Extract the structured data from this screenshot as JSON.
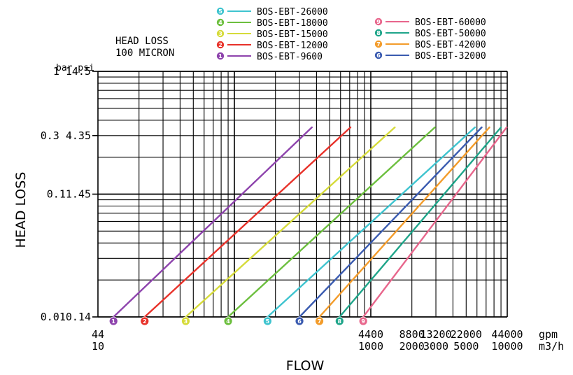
{
  "chart_data": {
    "type": "line",
    "title": "HEAD LOSS\n100 MICRON",
    "xlabel": "FLOW",
    "ylabel": "HEAD LOSS",
    "x_scale": "log",
    "y_scale": "log",
    "x_unit": "m3/h",
    "x_unit_alt": "gpm",
    "y_unit": "bar",
    "y_unit_alt": "psi",
    "xlim": [
      10,
      10000
    ],
    "ylim": [
      0.01,
      1
    ],
    "y_unit_header": "bar psi",
    "y_ticks": [
      {
        "value": 1,
        "label": "1 14.5"
      },
      {
        "value": 0.3,
        "label": "0.3 4.35"
      },
      {
        "value": 0.1,
        "label": "0.11.45"
      },
      {
        "value": 0.01,
        "label": "0.010.14"
      }
    ],
    "x_ticks": [
      {
        "value": 10,
        "label_top": "44",
        "label_bottom": "10"
      },
      {
        "value": 1000,
        "label_top": "4400",
        "label_bottom": "1000"
      },
      {
        "value": 2000,
        "label_top": "8800",
        "label_bottom": "2000"
      },
      {
        "value": 3000,
        "label_top": "13200",
        "label_bottom": "3000"
      },
      {
        "value": 5000,
        "label_top": "22000",
        "label_bottom": "5000"
      },
      {
        "value": 10000,
        "label_top": "44000",
        "label_bottom": "10000"
      }
    ],
    "x_unit_label_top": "gpm",
    "x_unit_label_bottom": "m3/h",
    "grid": true,
    "legend_position": "top",
    "series": [
      {
        "name": "BOS-EBT-9600",
        "badge": "1",
        "color": "#8e44ad",
        "x": [
          13,
          370
        ],
        "y": [
          0.01,
          0.35
        ]
      },
      {
        "name": "BOS-EBT-12000",
        "badge": "2",
        "color": "#e8322a",
        "x": [
          22,
          710
        ],
        "y": [
          0.01,
          0.35
        ]
      },
      {
        "name": "BOS-EBT-15000",
        "badge": "3",
        "color": "#d6db3a",
        "x": [
          44,
          1500
        ],
        "y": [
          0.01,
          0.35
        ]
      },
      {
        "name": "BOS-EBT-18000",
        "badge": "4",
        "color": "#6cbf3e",
        "x": [
          90,
          2950
        ],
        "y": [
          0.01,
          0.35
        ]
      },
      {
        "name": "BOS-EBT-26000",
        "badge": "5",
        "color": "#3fc4cf",
        "x": [
          175,
          5800
        ],
        "y": [
          0.01,
          0.35
        ]
      },
      {
        "name": "BOS-EBT-32000",
        "badge": "6",
        "color": "#3a5bb0",
        "x": [
          300,
          6500
        ],
        "y": [
          0.01,
          0.35
        ]
      },
      {
        "name": "BOS-EBT-42000",
        "badge": "7",
        "color": "#f39c2b",
        "x": [
          420,
          7400
        ],
        "y": [
          0.01,
          0.35
        ]
      },
      {
        "name": "BOS-EBT-50000",
        "badge": "8",
        "color": "#1fa58a",
        "x": [
          590,
          9000
        ],
        "y": [
          0.01,
          0.35
        ]
      },
      {
        "name": "BOS-EBT-60000",
        "badge": "9",
        "color": "#e8668c",
        "x": [
          880,
          9900
        ],
        "y": [
          0.01,
          0.35
        ]
      }
    ],
    "legend_left": [
      {
        "badge": "5",
        "name": "BOS-EBT-26000",
        "color": "#3fc4cf"
      },
      {
        "badge": "4",
        "name": "BOS-EBT-18000",
        "color": "#6cbf3e"
      },
      {
        "badge": "3",
        "name": "BOS-EBT-15000",
        "color": "#d6db3a"
      },
      {
        "badge": "2",
        "name": "BOS-EBT-12000",
        "color": "#e8322a"
      },
      {
        "badge": "1",
        "name": "BOS-EBT-9600",
        "color": "#8e44ad"
      }
    ],
    "legend_right": [
      {
        "badge": "9",
        "name": "BOS-EBT-60000",
        "color": "#e8668c"
      },
      {
        "badge": "8",
        "name": "BOS-EBT-50000",
        "color": "#1fa58a"
      },
      {
        "badge": "7",
        "name": "BOS-EBT-42000",
        "color": "#f39c2b"
      },
      {
        "badge": "6",
        "name": "BOS-EBT-32000",
        "color": "#3a5bb0"
      }
    ],
    "badge_row": [
      "1",
      "2",
      "3",
      "4",
      "5",
      "6",
      "7",
      "8",
      "9"
    ]
  }
}
